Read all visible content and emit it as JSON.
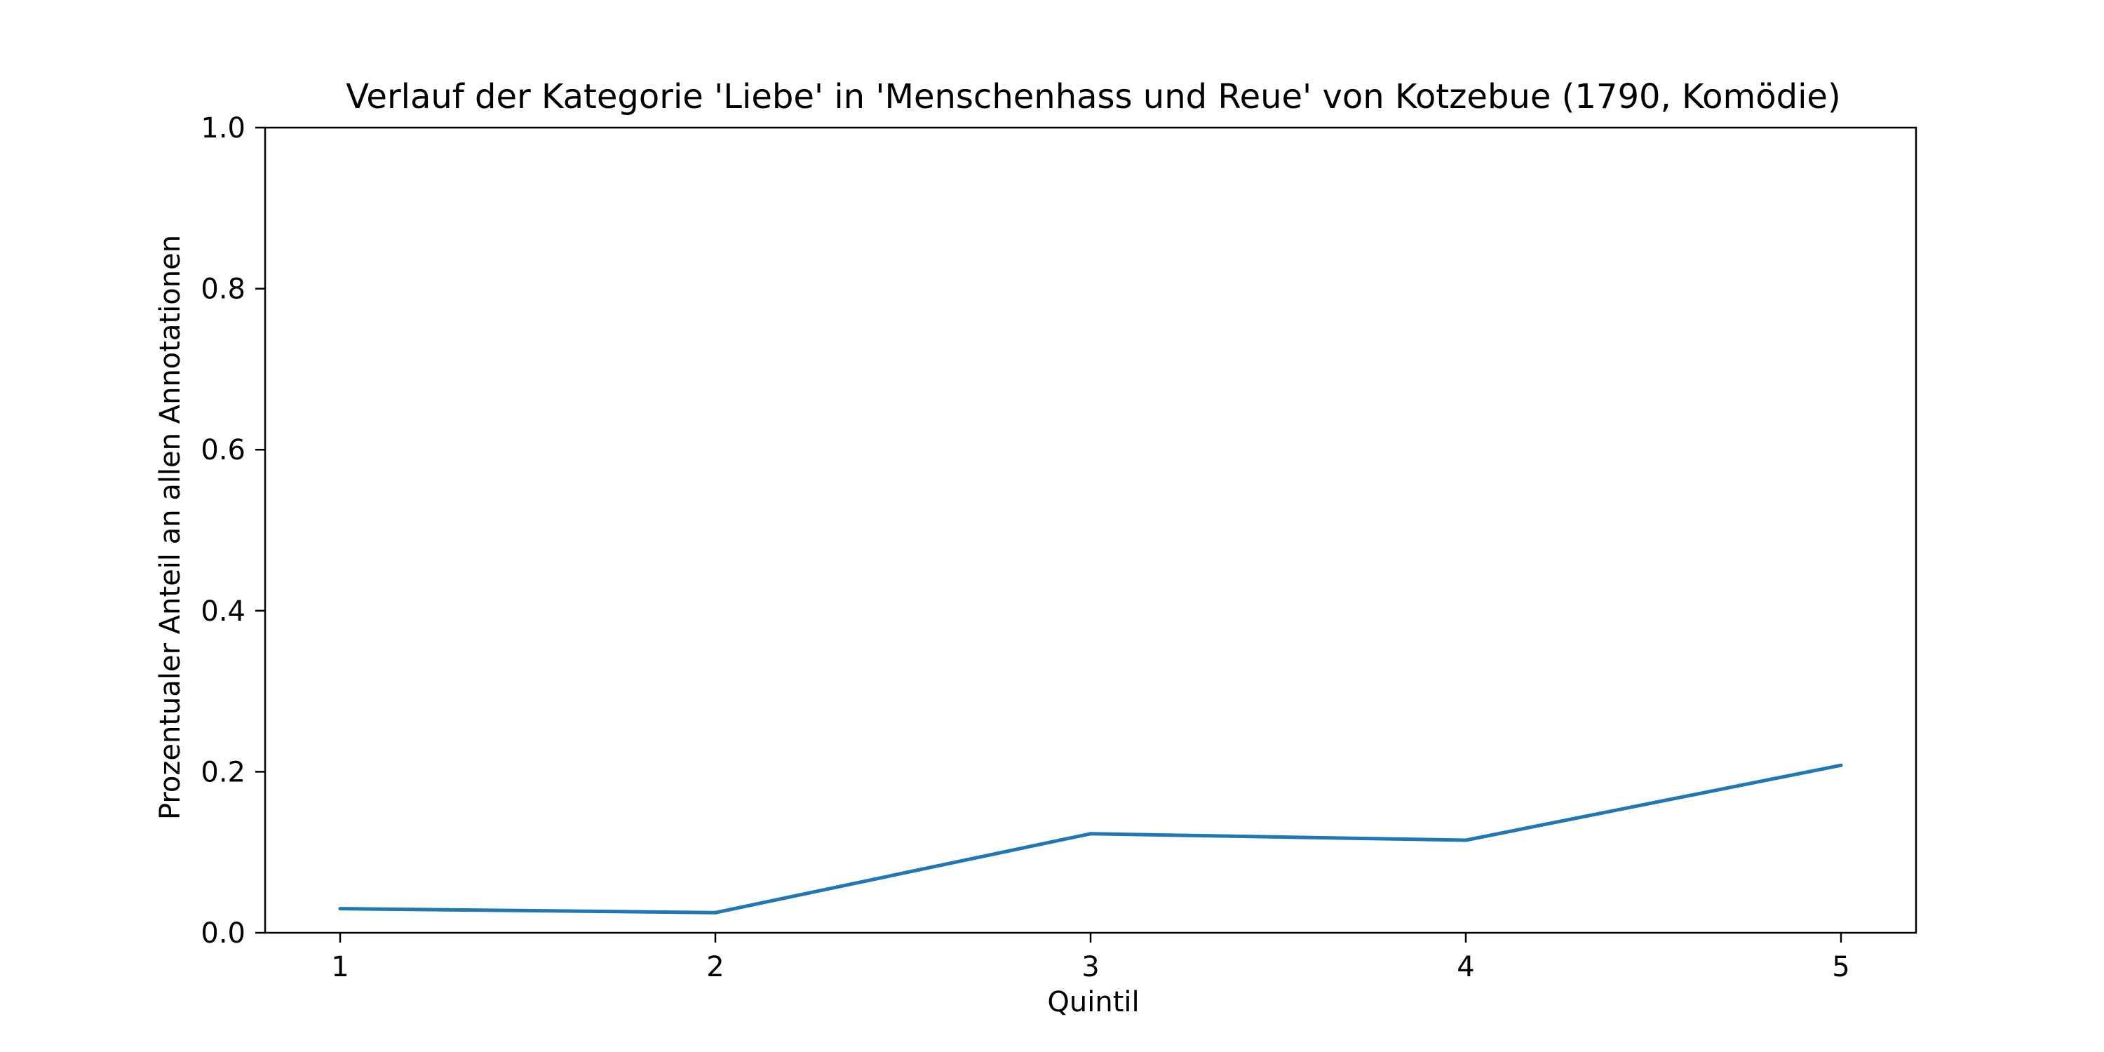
{
  "chart_data": {
    "type": "line",
    "title": "Verlauf der Kategorie 'Liebe' in 'Menschenhass und Reue' von Kotzebue (1790, Komödie)",
    "xlabel": "Quintil",
    "ylabel": "Prozentualer Anteil an allen Annotationen",
    "x": [
      1,
      2,
      3,
      4,
      5
    ],
    "x_tick_labels": [
      "1",
      "2",
      "3",
      "4",
      "5"
    ],
    "xlim": [
      0.8,
      5.2
    ],
    "ylim": [
      0.0,
      1.0
    ],
    "y_ticks": [
      0.0,
      0.2,
      0.4,
      0.6,
      0.8,
      1.0
    ],
    "y_tick_labels": [
      "0.0",
      "0.2",
      "0.4",
      "0.6",
      "0.8",
      "1.0"
    ],
    "grid": false,
    "series": [
      {
        "values": [
          0.03,
          0.025,
          0.123,
          0.115,
          0.208
        ],
        "color": "#1f77b4"
      }
    ]
  }
}
